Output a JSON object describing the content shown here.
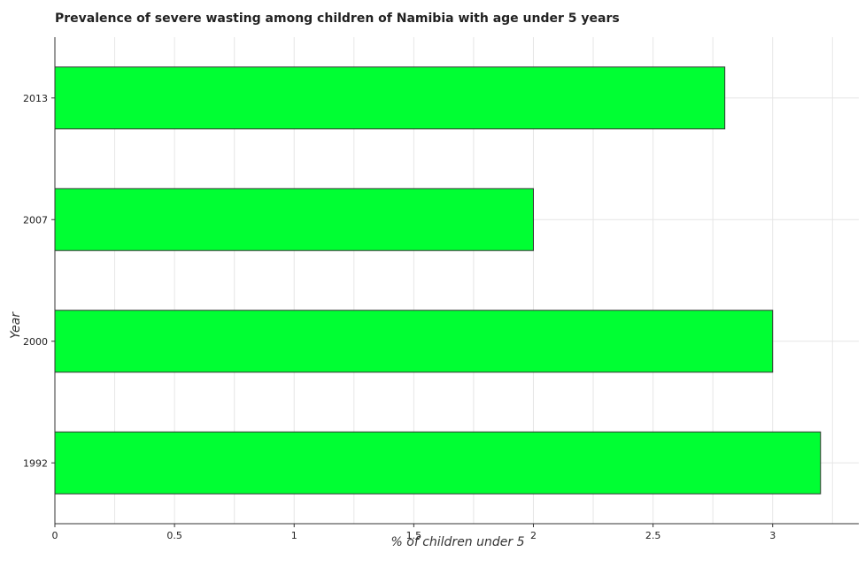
{
  "chart_data": {
    "type": "bar",
    "orientation": "horizontal",
    "title": "Prevalence of severe wasting among children of Namibia with age under 5 years",
    "xlabel": "% of children under 5",
    "ylabel": "Year",
    "categories": [
      "1992",
      "2000",
      "2007",
      "2013"
    ],
    "values": [
      3.2,
      3.0,
      2.0,
      2.8
    ],
    "xticks": [
      "0",
      "0.5",
      "1",
      "1.5",
      "2",
      "2.5",
      "3"
    ],
    "xlim": [
      0,
      3.36
    ],
    "grid": true,
    "bar_color": "#00ff33"
  }
}
